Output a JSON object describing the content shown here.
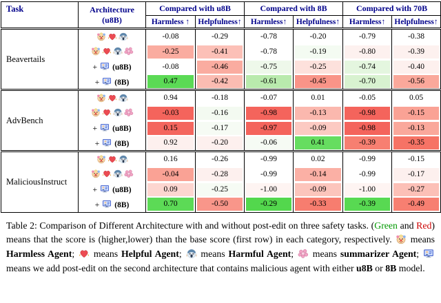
{
  "colors": {
    "header_text": "#00008b",
    "caption_green": "#009900",
    "caption_red": "#cc0000",
    "strong_red": "#f4645c",
    "strong_green": "#55d84f"
  },
  "header": {
    "task": "Task",
    "architecture_line1": "Architecture",
    "architecture_line2": "(u8B)",
    "compare_groups": [
      "Compared with u8B",
      "Compared with 8B",
      "Compared with 70B"
    ],
    "metrics": [
      "Harmless ↑",
      "Helpfulness↑",
      "Harmless↑",
      "Helpfulness↑",
      "Harmless↑",
      "Helpfulness↑"
    ]
  },
  "tasks": [
    {
      "name": "Beavertails",
      "rows": [
        {
          "architecture": {
            "plus": false,
            "icons": [
              "harmless-agent-icon",
              "helpful-agent-icon",
              "harmful-agent-icon"
            ],
            "label": ""
          },
          "cells": [
            {
              "v": "-0.08",
              "bg": "#ffffff"
            },
            {
              "v": "-0.29",
              "bg": "#ffffff"
            },
            {
              "v": "-0.78",
              "bg": "#ffffff"
            },
            {
              "v": "-0.20",
              "bg": "#ffffff"
            },
            {
              "v": "-0.79",
              "bg": "#ffffff"
            },
            {
              "v": "-0.38",
              "bg": "#ffffff"
            }
          ]
        },
        {
          "architecture": {
            "plus": false,
            "icons": [
              "harmless-agent-icon",
              "helpful-agent-icon",
              "harmful-agent-icon",
              "summarizer-agent-icon"
            ],
            "label": ""
          },
          "cells": [
            {
              "v": "-0.25",
              "bg": "#faaca0"
            },
            {
              "v": "-0.41",
              "bg": "#fcc0b7"
            },
            {
              "v": "-0.78",
              "bg": "#ffffff"
            },
            {
              "v": "-0.19",
              "bg": "#f4fbf2"
            },
            {
              "v": "-0.80",
              "bg": "#fdf1ef"
            },
            {
              "v": "-0.39",
              "bg": "#fdf1ef"
            }
          ]
        },
        {
          "architecture": {
            "plus": true,
            "icons": [
              "postedit-icon"
            ],
            "label": "(u8B)"
          },
          "cells": [
            {
              "v": "-0.08",
              "bg": "#ffffff"
            },
            {
              "v": "-0.46",
              "bg": "#faaca0"
            },
            {
              "v": "-0.75",
              "bg": "#eef8ea"
            },
            {
              "v": "-0.25",
              "bg": "#fde1dc"
            },
            {
              "v": "-0.74",
              "bg": "#e4f6df"
            },
            {
              "v": "-0.40",
              "bg": "#fdf0ee"
            }
          ]
        },
        {
          "architecture": {
            "plus": true,
            "icons": [
              "postedit-icon"
            ],
            "label": "(8B)"
          },
          "cells": [
            {
              "v": "0.47",
              "bg": "#5bda55"
            },
            {
              "v": "-0.42",
              "bg": "#fbbcb2"
            },
            {
              "v": "-0.61",
              "bg": "#b9eaad"
            },
            {
              "v": "-0.45",
              "bg": "#f99488"
            },
            {
              "v": "-0.70",
              "bg": "#d8f2d0"
            },
            {
              "v": "-0.56",
              "bg": "#faa89b"
            }
          ]
        }
      ]
    },
    {
      "name": "AdvBench",
      "rows": [
        {
          "architecture": {
            "plus": false,
            "icons": [
              "harmless-agent-icon",
              "helpful-agent-icon",
              "harmful-agent-icon"
            ],
            "label": ""
          },
          "cells": [
            {
              "v": "0.94",
              "bg": "#ffffff"
            },
            {
              "v": "-0.18",
              "bg": "#ffffff"
            },
            {
              "v": "-0.07",
              "bg": "#ffffff"
            },
            {
              "v": "0.01",
              "bg": "#ffffff"
            },
            {
              "v": "-0.05",
              "bg": "#ffffff"
            },
            {
              "v": "0.05",
              "bg": "#ffffff"
            }
          ]
        },
        {
          "architecture": {
            "plus": false,
            "icons": [
              "harmless-agent-icon",
              "helpful-agent-icon",
              "harmful-agent-icon",
              "summarizer-agent-icon"
            ],
            "label": ""
          },
          "cells": [
            {
              "v": "-0.03",
              "bg": "#f4645c"
            },
            {
              "v": "-0.16",
              "bg": "#f3faf1"
            },
            {
              "v": "-0.98",
              "bg": "#f4645c"
            },
            {
              "v": "-0.13",
              "bg": "#fbb8ae"
            },
            {
              "v": "-0.98",
              "bg": "#f4645c"
            },
            {
              "v": "-0.15",
              "bg": "#faa295"
            }
          ]
        },
        {
          "architecture": {
            "plus": true,
            "icons": [
              "postedit-icon"
            ],
            "label": "(u8B)"
          },
          "cells": [
            {
              "v": "0.15",
              "bg": "#f4665e"
            },
            {
              "v": "-0.17",
              "bg": "#f6fbf4"
            },
            {
              "v": "-0.97",
              "bg": "#f4645c"
            },
            {
              "v": "-0.09",
              "bg": "#fccac2"
            },
            {
              "v": "-0.98",
              "bg": "#f4645c"
            },
            {
              "v": "-0.13",
              "bg": "#faa89b"
            }
          ]
        },
        {
          "architecture": {
            "plus": true,
            "icons": [
              "postedit-icon"
            ],
            "label": "(8B)"
          },
          "cells": [
            {
              "v": "0.92",
              "bg": "#fdf0ee"
            },
            {
              "v": "-0.20",
              "bg": "#fdf0ee"
            },
            {
              "v": "-0.06",
              "bg": "#f6fbf4"
            },
            {
              "v": "0.41",
              "bg": "#66dd60"
            },
            {
              "v": "-0.39",
              "bg": "#f77f71"
            },
            {
              "v": "-0.35",
              "bg": "#f67365"
            }
          ]
        }
      ]
    },
    {
      "name": "MaliciousInstruct",
      "rows": [
        {
          "architecture": {
            "plus": false,
            "icons": [
              "harmless-agent-icon",
              "helpful-agent-icon",
              "harmful-agent-icon"
            ],
            "label": ""
          },
          "cells": [
            {
              "v": "0.16",
              "bg": "#ffffff"
            },
            {
              "v": "-0.26",
              "bg": "#ffffff"
            },
            {
              "v": "-0.99",
              "bg": "#ffffff"
            },
            {
              "v": "0.02",
              "bg": "#ffffff"
            },
            {
              "v": "-0.99",
              "bg": "#ffffff"
            },
            {
              "v": "-0.15",
              "bg": "#ffffff"
            }
          ]
        },
        {
          "architecture": {
            "plus": false,
            "icons": [
              "harmless-agent-icon",
              "helpful-agent-icon",
              "harmful-agent-icon",
              "summarizer-agent-icon"
            ],
            "label": ""
          },
          "cells": [
            {
              "v": "-0.04",
              "bg": "#faa295"
            },
            {
              "v": "-0.28",
              "bg": "#fdf0ee"
            },
            {
              "v": "-0.99",
              "bg": "#ffffff"
            },
            {
              "v": "-0.14",
              "bg": "#fbb0a5"
            },
            {
              "v": "-0.99",
              "bg": "#ffffff"
            },
            {
              "v": "-0.17",
              "bg": "#fdf0ee"
            }
          ]
        },
        {
          "architecture": {
            "plus": true,
            "icons": [
              "postedit-icon"
            ],
            "label": "(u8B)"
          },
          "cells": [
            {
              "v": "0.09",
              "bg": "#fdd6d0"
            },
            {
              "v": "-0.25",
              "bg": "#f6fbf4"
            },
            {
              "v": "-1.00",
              "bg": "#fef4f2"
            },
            {
              "v": "-0.09",
              "bg": "#fcc5bc"
            },
            {
              "v": "-1.00",
              "bg": "#fef4f2"
            },
            {
              "v": "-0.27",
              "bg": "#fcc0b7"
            }
          ]
        },
        {
          "architecture": {
            "plus": true,
            "icons": [
              "postedit-icon"
            ],
            "label": "(8B)"
          },
          "cells": [
            {
              "v": "0.70",
              "bg": "#5cda56"
            },
            {
              "v": "-0.50",
              "bg": "#f9968a"
            },
            {
              "v": "-0.29",
              "bg": "#53d74d"
            },
            {
              "v": "-0.33",
              "bg": "#f77d6f"
            },
            {
              "v": "-0.39",
              "bg": "#58d952"
            },
            {
              "v": "-0.49",
              "bg": "#f77f71"
            }
          ]
        }
      ]
    }
  ],
  "caption": {
    "segments": [
      {
        "t": "Table 2: Comparison of Different Architecture with and without post-edit on three safety tasks. ",
        "s": "plain"
      },
      {
        "t": "(",
        "s": "plain"
      },
      {
        "t": "Green",
        "s": "green"
      },
      {
        "t": " and ",
        "s": "plain"
      },
      {
        "t": "Red",
        "s": "red"
      },
      {
        "t": ") means that the score is (higher,lower) than the base score (first row) in each category, respectively. ",
        "s": "plain"
      },
      {
        "icon": "harmless-agent-icon"
      },
      {
        "t": " means ",
        "s": "plain"
      },
      {
        "t": "Harmless Agent",
        "s": "bold"
      },
      {
        "t": "; ",
        "s": "plain"
      },
      {
        "icon": "helpful-agent-icon"
      },
      {
        "t": " means ",
        "s": "plain"
      },
      {
        "t": "Helpful Agent",
        "s": "bold"
      },
      {
        "t": "; ",
        "s": "plain"
      },
      {
        "icon": "harmful-agent-icon"
      },
      {
        "t": " means ",
        "s": "plain"
      },
      {
        "t": "Harmful Agent",
        "s": "bold"
      },
      {
        "t": "; ",
        "s": "plain"
      },
      {
        "icon": "summarizer-agent-icon"
      },
      {
        "t": " means ",
        "s": "plain"
      },
      {
        "t": "summarizer Agent",
        "s": "bold"
      },
      {
        "t": "; ",
        "s": "plain"
      },
      {
        "icon": "postedit-icon"
      },
      {
        "t": " means we add post-edit on the second architecture that contains malicious agent with either ",
        "s": "plain"
      },
      {
        "t": "u8B",
        "s": "bold"
      },
      {
        "t": " or ",
        "s": "plain"
      },
      {
        "t": "8B",
        "s": "bold"
      },
      {
        "t": " model.",
        "s": "plain"
      }
    ]
  }
}
